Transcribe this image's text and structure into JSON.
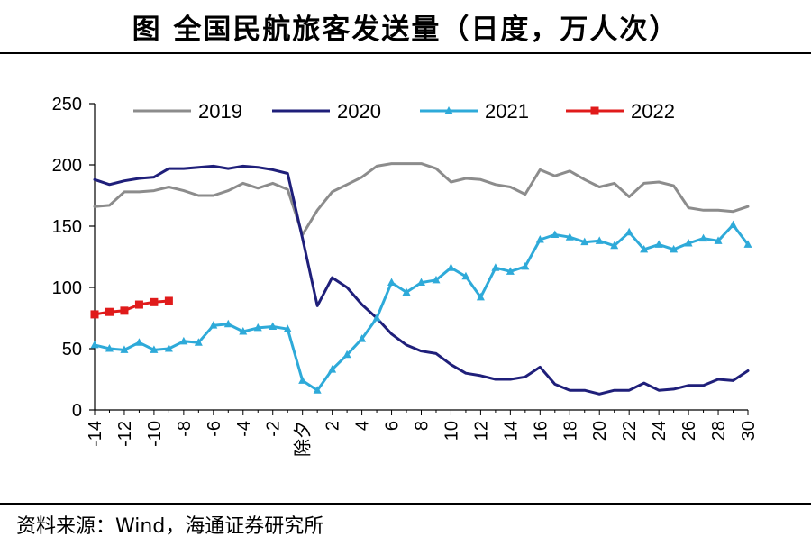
{
  "header": {
    "title": "图  全国民航旅客发送量（日度，万人次）"
  },
  "footer": {
    "source": "资料来源：Wind，海通证券研究所"
  },
  "chart_data": {
    "type": "line",
    "title": "全国民航旅客发送量（日度，万人次）",
    "xlabel": "",
    "ylabel": "",
    "ylim": [
      0,
      250
    ],
    "yticks": [
      "0",
      "50",
      "100",
      "150",
      "200",
      "250"
    ],
    "xlim": [
      -14,
      30
    ],
    "xticks": [
      {
        "v": -14,
        "label": "-14"
      },
      {
        "v": -12,
        "label": "-12"
      },
      {
        "v": -10,
        "label": "-10"
      },
      {
        "v": -8,
        "label": "-8"
      },
      {
        "v": -6,
        "label": "-6"
      },
      {
        "v": -4,
        "label": "-4"
      },
      {
        "v": -2,
        "label": "-2"
      },
      {
        "v": 0,
        "label": "除夕"
      },
      {
        "v": 2,
        "label": "2"
      },
      {
        "v": 4,
        "label": "4"
      },
      {
        "v": 6,
        "label": "6"
      },
      {
        "v": 8,
        "label": "8"
      },
      {
        "v": 10,
        "label": "10"
      },
      {
        "v": 12,
        "label": "12"
      },
      {
        "v": 14,
        "label": "14"
      },
      {
        "v": 16,
        "label": "16"
      },
      {
        "v": 18,
        "label": "18"
      },
      {
        "v": 20,
        "label": "20"
      },
      {
        "v": 22,
        "label": "22"
      },
      {
        "v": 24,
        "label": "24"
      },
      {
        "v": 26,
        "label": "26"
      },
      {
        "v": 28,
        "label": "28"
      },
      {
        "v": 30,
        "label": "30"
      }
    ],
    "legend_position": "top",
    "series": [
      {
        "name": "2019",
        "color": "#8c8c8c",
        "marker": "none",
        "x": [
          -14,
          -13,
          -12,
          -11,
          -10,
          -9,
          -8,
          -7,
          -6,
          -5,
          -4,
          -3,
          -2,
          -1,
          0,
          1,
          2,
          3,
          4,
          5,
          6,
          7,
          8,
          9,
          10,
          11,
          12,
          13,
          14,
          15,
          16,
          17,
          18,
          19,
          20,
          21,
          22,
          23,
          24,
          25,
          26,
          27,
          28,
          29,
          30
        ],
        "values": [
          166,
          167,
          178,
          178,
          179,
          182,
          179,
          175,
          175,
          179,
          185,
          181,
          185,
          180,
          143,
          163,
          178,
          184,
          190,
          199,
          201,
          201,
          201,
          197,
          186,
          189,
          188,
          184,
          182,
          176,
          196,
          191,
          195,
          188,
          182,
          185,
          174,
          185,
          186,
          183,
          165,
          163,
          163,
          162,
          166
        ]
      },
      {
        "name": "2020",
        "color": "#1f1f7a",
        "marker": "none",
        "x": [
          -14,
          -13,
          -12,
          -11,
          -10,
          -9,
          -8,
          -7,
          -6,
          -5,
          -4,
          -3,
          -2,
          -1,
          0,
          1,
          2,
          3,
          4,
          5,
          6,
          7,
          8,
          9,
          10,
          11,
          12,
          13,
          14,
          15,
          16,
          17,
          18,
          19,
          20,
          21,
          22,
          23,
          24,
          25,
          26,
          27,
          28,
          29,
          30
        ],
        "values": [
          188,
          184,
          187,
          189,
          190,
          197,
          197,
          198,
          199,
          197,
          199,
          198,
          196,
          193,
          140,
          85,
          108,
          100,
          86,
          75,
          62,
          53,
          48,
          46,
          37,
          30,
          28,
          25,
          25,
          27,
          35,
          21,
          16,
          16,
          13,
          16,
          16,
          22,
          16,
          17,
          20,
          20,
          25,
          24,
          32
        ]
      },
      {
        "name": "2021",
        "color": "#2eaad9",
        "marker": "triangle",
        "x": [
          -14,
          -13,
          -12,
          -11,
          -10,
          -9,
          -8,
          -7,
          -6,
          -5,
          -4,
          -3,
          -2,
          -1,
          0,
          1,
          2,
          3,
          4,
          5,
          6,
          7,
          8,
          9,
          10,
          11,
          12,
          13,
          14,
          15,
          16,
          17,
          18,
          19,
          20,
          21,
          22,
          23,
          24,
          25,
          26,
          27,
          28,
          29,
          30
        ],
        "values": [
          53,
          50,
          49,
          55,
          49,
          50,
          56,
          55,
          69,
          70,
          64,
          67,
          68,
          66,
          24,
          16,
          33,
          45,
          58,
          75,
          104,
          96,
          104,
          106,
          116,
          109,
          92,
          116,
          113,
          117,
          139,
          143,
          141,
          137,
          138,
          134,
          145,
          131,
          135,
          131,
          136,
          140,
          138,
          151,
          135
        ]
      },
      {
        "name": "2022",
        "color": "#e01b1b",
        "marker": "square",
        "x": [
          -14,
          -13,
          -12,
          -11,
          -10,
          -9
        ],
        "values": [
          78,
          80,
          81,
          86,
          88,
          89
        ]
      }
    ]
  }
}
